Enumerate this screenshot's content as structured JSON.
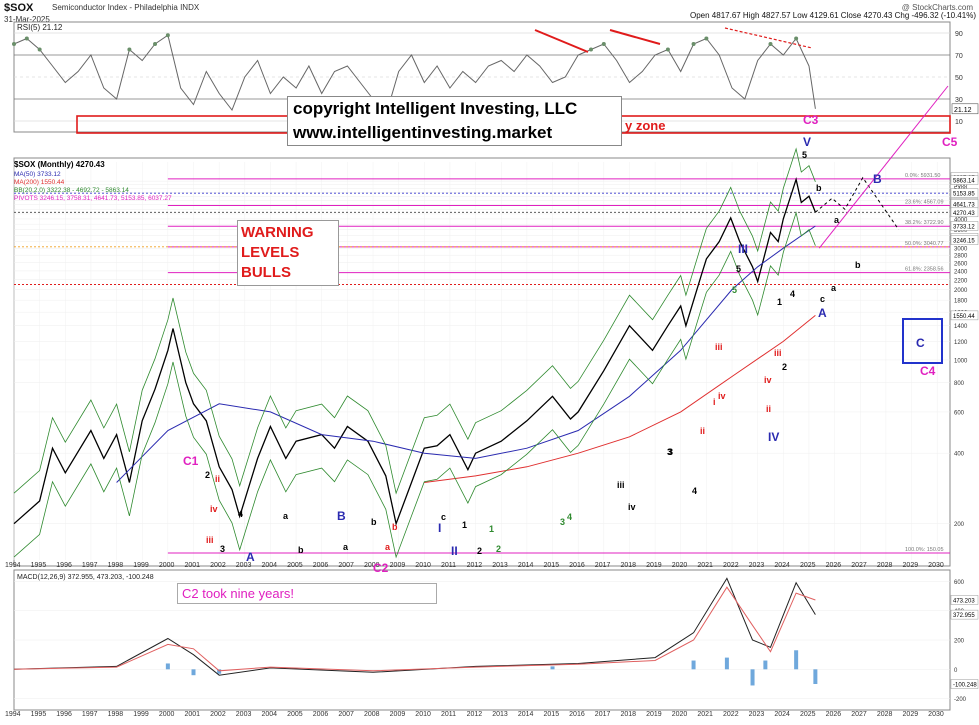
{
  "header": {
    "symbol": "$SOX",
    "name": "Semiconductor Index - Philadelphia  INDX",
    "date": "31-Mar-2025",
    "ohlc": "Open 4817.67  High 4827.57  Low 4129.61  Close 4270.43  Chg -496.32 (-10.41%)",
    "credit": "@ StockCharts.com"
  },
  "legend": {
    "title": "$SOX (Monthly) 4270.43",
    "ma50": "MA(50) 3733.12",
    "ma200": "MA(200) 1550.44",
    "bb": "BB(20,2.0) 3322.38 - 4692.72 - 5863.14",
    "pivots": "PIVOTS 3246.15, 3758.31, 4641.73, 5153.85, 6037.27",
    "colors": {
      "ma50": "#2a2ab0",
      "ma200": "#e03030",
      "bb": "#2f8a2f",
      "pivots": "#e020c0"
    }
  },
  "overlays": {
    "copyright_line1": "copyright Intelligent Investing, LLC",
    "copyright_line2": "www.intelligentinvesting.market",
    "zone_text": "y zone",
    "warning": [
      "WARNING",
      "LEVELS",
      "BULLS"
    ],
    "c2_note": "C2 took nine years!"
  },
  "chart_data": [
    {
      "type": "line",
      "title": "RSI(5) 21.12",
      "ylim": [
        0,
        100
      ],
      "y_ticks": [
        10,
        30,
        50,
        70,
        90
      ],
      "last_value_label": "21.12",
      "x": [
        1994.0,
        1994.5,
        1995.0,
        1995.5,
        1996.0,
        1996.5,
        1997.0,
        1997.5,
        1998.0,
        1998.5,
        1999.0,
        1999.5,
        2000.0,
        2000.5,
        2001.0,
        2001.5,
        2002.0,
        2002.5,
        2003.0,
        2003.5,
        2004.0,
        2004.5,
        2005.0,
        2005.5,
        2006.0,
        2006.5,
        2007.0,
        2007.5,
        2008.0,
        2008.5,
        2009.0,
        2009.5,
        2010.0,
        2010.5,
        2011.0,
        2011.5,
        2012.0,
        2012.5,
        2013.0,
        2013.5,
        2014.0,
        2014.5,
        2015.0,
        2015.5,
        2016.0,
        2016.5,
        2017.0,
        2017.5,
        2018.0,
        2018.5,
        2019.0,
        2019.5,
        2020.0,
        2020.5,
        2021.0,
        2021.5,
        2022.0,
        2022.5,
        2023.0,
        2023.5,
        2024.0,
        2024.5,
        2025.0,
        2025.25
      ],
      "y": [
        80,
        85,
        75,
        60,
        45,
        55,
        70,
        40,
        30,
        75,
        65,
        80,
        88,
        40,
        25,
        55,
        35,
        20,
        50,
        65,
        35,
        50,
        40,
        60,
        35,
        55,
        60,
        45,
        30,
        15,
        55,
        70,
        45,
        60,
        40,
        55,
        45,
        60,
        65,
        55,
        70,
        60,
        45,
        50,
        70,
        75,
        80,
        65,
        45,
        55,
        70,
        75,
        55,
        80,
        85,
        70,
        40,
        30,
        65,
        80,
        70,
        85,
        60,
        21.12
      ]
    },
    {
      "type": "line",
      "title": "$SOX (Monthly) 4270.43",
      "xlabel": "",
      "ylabel": "",
      "x_ticks": [
        1994,
        1995,
        1996,
        1997,
        1998,
        1999,
        2000,
        2001,
        2002,
        2003,
        2004,
        2005,
        2006,
        2007,
        2008,
        2009,
        2010,
        2011,
        2012,
        2013,
        2014,
        2015,
        2016,
        2017,
        2018,
        2019,
        2020,
        2021,
        2022,
        2023,
        2024,
        2025,
        2026,
        2027,
        2028,
        2029,
        2030
      ],
      "y_ticks": [
        200,
        400,
        600,
        800,
        1000,
        1200,
        1400,
        1600,
        1800,
        2000,
        2200,
        2400,
        2600,
        2800,
        3000,
        3200,
        3400,
        3600,
        3800,
        4000,
        4200,
        4400,
        4600,
        4800,
        5000,
        5200,
        5400,
        5600,
        5800
      ],
      "series": [
        {
          "name": "$SOX",
          "x": [
            1994.0,
            1995.0,
            1995.5,
            1996.0,
            1997.0,
            1997.5,
            1998.0,
            1998.5,
            1999.0,
            1999.5,
            2000.0,
            2000.2,
            2000.7,
            2001.0,
            2001.5,
            2002.0,
            2002.5,
            2002.8,
            2003.5,
            2004.0,
            2004.6,
            2005.0,
            2006.0,
            2006.5,
            2007.0,
            2007.8,
            2008.5,
            2008.9,
            2009.5,
            2010.0,
            2010.5,
            2011.0,
            2011.7,
            2012.0,
            2013.0,
            2014.0,
            2015.0,
            2015.7,
            2016.0,
            2017.0,
            2018.0,
            2018.9,
            2019.5,
            2020.0,
            2020.2,
            2020.8,
            2021.0,
            2021.5,
            2021.95,
            2022.3,
            2022.8,
            2023.0,
            2023.5,
            2023.8,
            2024.0,
            2024.5,
            2024.7,
            2025.0,
            2025.25
          ],
          "y": [
            200,
            250,
            420,
            330,
            500,
            380,
            480,
            300,
            550,
            750,
            1100,
            1362,
            800,
            650,
            550,
            350,
            280,
            215,
            380,
            520,
            380,
            450,
            480,
            420,
            520,
            450,
            320,
            200,
            300,
            420,
            430,
            480,
            340,
            400,
            450,
            550,
            700,
            560,
            600,
            900,
            1400,
            1100,
            1400,
            1700,
            1400,
            2300,
            2700,
            3200,
            4039,
            3200,
            2500,
            2162,
            3500,
            3200,
            4000,
            5900,
            4700,
            5000,
            4270
          ]
        },
        {
          "name": "MA(50)",
          "x": [
            1998,
            2000,
            2002,
            2004,
            2006,
            2008,
            2010,
            2012,
            2014,
            2016,
            2018,
            2020,
            2022,
            2023,
            2024,
            2025.25
          ],
          "y": [
            300,
            500,
            650,
            600,
            480,
            450,
            400,
            380,
            420,
            500,
            700,
            1100,
            2000,
            2500,
            3000,
            3733
          ]
        },
        {
          "name": "MA(200)",
          "x": [
            2010,
            2012,
            2014,
            2016,
            2018,
            2020,
            2022,
            2024,
            2025.25
          ],
          "y": [
            300,
            320,
            350,
            400,
            470,
            600,
            850,
            1200,
            1550
          ]
        }
      ],
      "horizontal_levels": [
        {
          "label": "0.0%: 5931.50",
          "value": 5931.5,
          "color": "#e020c0"
        },
        {
          "label": "23.6%: 4567.09",
          "value": 4567.09,
          "color": "#e020c0"
        },
        {
          "label": "38.2%: 3722.90",
          "value": 3722.9,
          "color": "#e020c0"
        },
        {
          "label": "50.0%: 3040.77",
          "value": 3040.77,
          "color": "#e020c0"
        },
        {
          "label": "61.8%: 2358.56",
          "value": 2358.56,
          "color": "#e020c0"
        },
        {
          "label": "100.0%: 150.05",
          "value": 150.05,
          "color": "#e020c0"
        }
      ],
      "right_axis_labels": [
        "6037.27",
        "5863.14",
        "5153.85",
        "4692.72",
        "4641.73",
        "4270.43",
        "3733.12",
        "3322.38",
        "3246.15",
        "1550.44"
      ],
      "wave_labels": [
        {
          "text": "C1",
          "color": "#e020c0"
        },
        {
          "text": "2",
          "color": "#000000"
        },
        {
          "text": "ii",
          "color": "#e01b1b"
        },
        {
          "text": "iv",
          "color": "#e01b1b"
        },
        {
          "text": "iii",
          "color": "#e01b1b"
        },
        {
          "text": "3",
          "color": "#000000"
        },
        {
          "text": "4",
          "color": "#000000"
        },
        {
          "text": "A",
          "color": "#2a2ab0"
        },
        {
          "text": "a",
          "color": "#000000"
        },
        {
          "text": "b",
          "color": "#000000"
        },
        {
          "text": "a",
          "color": "#000000"
        },
        {
          "text": "B",
          "color": "#2a2ab0"
        },
        {
          "text": "b",
          "color": "#000000"
        },
        {
          "text": "c",
          "color": "#000000"
        },
        {
          "text": "b",
          "color": "#e01b1b"
        },
        {
          "text": "a",
          "color": "#e01b1b"
        },
        {
          "text": "C2",
          "color": "#e020c0"
        },
        {
          "text": "I",
          "color": "#2a2ab0"
        },
        {
          "text": "II",
          "color": "#2a2ab0"
        },
        {
          "text": "1",
          "color": "#000000"
        },
        {
          "text": "2",
          "color": "#000000"
        },
        {
          "text": "1",
          "color": "#2f8a2f"
        },
        {
          "text": "2",
          "color": "#2f8a2f"
        },
        {
          "text": "3",
          "color": "#2f8a2f"
        },
        {
          "text": "4",
          "color": "#2f8a2f"
        },
        {
          "text": "5",
          "color": "#2f8a2f"
        },
        {
          "text": "iii",
          "color": "#000000"
        },
        {
          "text": "iv",
          "color": "#000000"
        },
        {
          "text": "3",
          "color": "#000000"
        },
        {
          "text": "4",
          "color": "#000000"
        },
        {
          "text": "i",
          "color": "#e01b1b"
        },
        {
          "text": "ii",
          "color": "#e01b1b"
        },
        {
          "text": "iii",
          "color": "#e01b1b"
        },
        {
          "text": "iv",
          "color": "#e01b1b"
        },
        {
          "text": "III",
          "color": "#2a2ab0"
        },
        {
          "text": "5",
          "color": "#000000"
        },
        {
          "text": "IV",
          "color": "#2a2ab0"
        },
        {
          "text": "1",
          "color": "#000000"
        },
        {
          "text": "2",
          "color": "#000000"
        },
        {
          "text": "3",
          "color": "#000000"
        },
        {
          "text": "4",
          "color": "#000000"
        },
        {
          "text": "iii",
          "color": "#e01b1b"
        },
        {
          "text": "iv",
          "color": "#e01b1b"
        },
        {
          "text": "ii",
          "color": "#e01b1b"
        },
        {
          "text": "V",
          "color": "#2a2ab0"
        },
        {
          "text": "5",
          "color": "#000000"
        },
        {
          "text": "b",
          "color": "#000000"
        },
        {
          "text": "a",
          "color": "#000000"
        },
        {
          "text": "c",
          "color": "#000000"
        },
        {
          "text": "A",
          "color": "#2a2ab0"
        },
        {
          "text": "B",
          "color": "#2a2ab0"
        },
        {
          "text": "a",
          "color": "#000000"
        },
        {
          "text": "b",
          "color": "#000000"
        },
        {
          "text": "C",
          "color": "#2a2ab0"
        },
        {
          "text": "C3",
          "color": "#e020c0"
        },
        {
          "text": "C4",
          "color": "#e020c0"
        },
        {
          "text": "C5",
          "color": "#e020c0"
        }
      ]
    },
    {
      "type": "line",
      "title": "MACD(12,26,9) 372.955, 473.203, -100.248",
      "y_ticks": [
        -200,
        0,
        200,
        400,
        600
      ],
      "right_axis_labels": [
        "473.203",
        "372.955",
        "-100.248"
      ],
      "series": [
        {
          "name": "MACD",
          "x": [
            1994,
            1998,
            2000,
            2001,
            2002,
            2004,
            2008,
            2012,
            2016,
            2019,
            2020.5,
            2021.8,
            2022.8,
            2023.5,
            2024.5,
            2025.25
          ],
          "y": [
            0,
            20,
            210,
            100,
            -40,
            10,
            -20,
            20,
            40,
            80,
            250,
            620,
            200,
            150,
            590,
            373
          ]
        },
        {
          "name": "Signal",
          "x": [
            1994,
            1998,
            2000,
            2001,
            2002,
            2004,
            2008,
            2012,
            2016,
            2019,
            2020.5,
            2021.8,
            2022.8,
            2023.5,
            2024.5,
            2025.25
          ],
          "y": [
            0,
            15,
            170,
            140,
            -10,
            15,
            -10,
            15,
            35,
            60,
            200,
            560,
            300,
            120,
            520,
            473
          ]
        }
      ],
      "histogram": {
        "x": [
          2000,
          2001,
          2002,
          2015,
          2020.5,
          2021.8,
          2022.8,
          2023.3,
          2024.5,
          2025.25
        ],
        "y": [
          40,
          -40,
          -30,
          20,
          60,
          80,
          -110,
          60,
          130,
          -100
        ]
      }
    }
  ]
}
